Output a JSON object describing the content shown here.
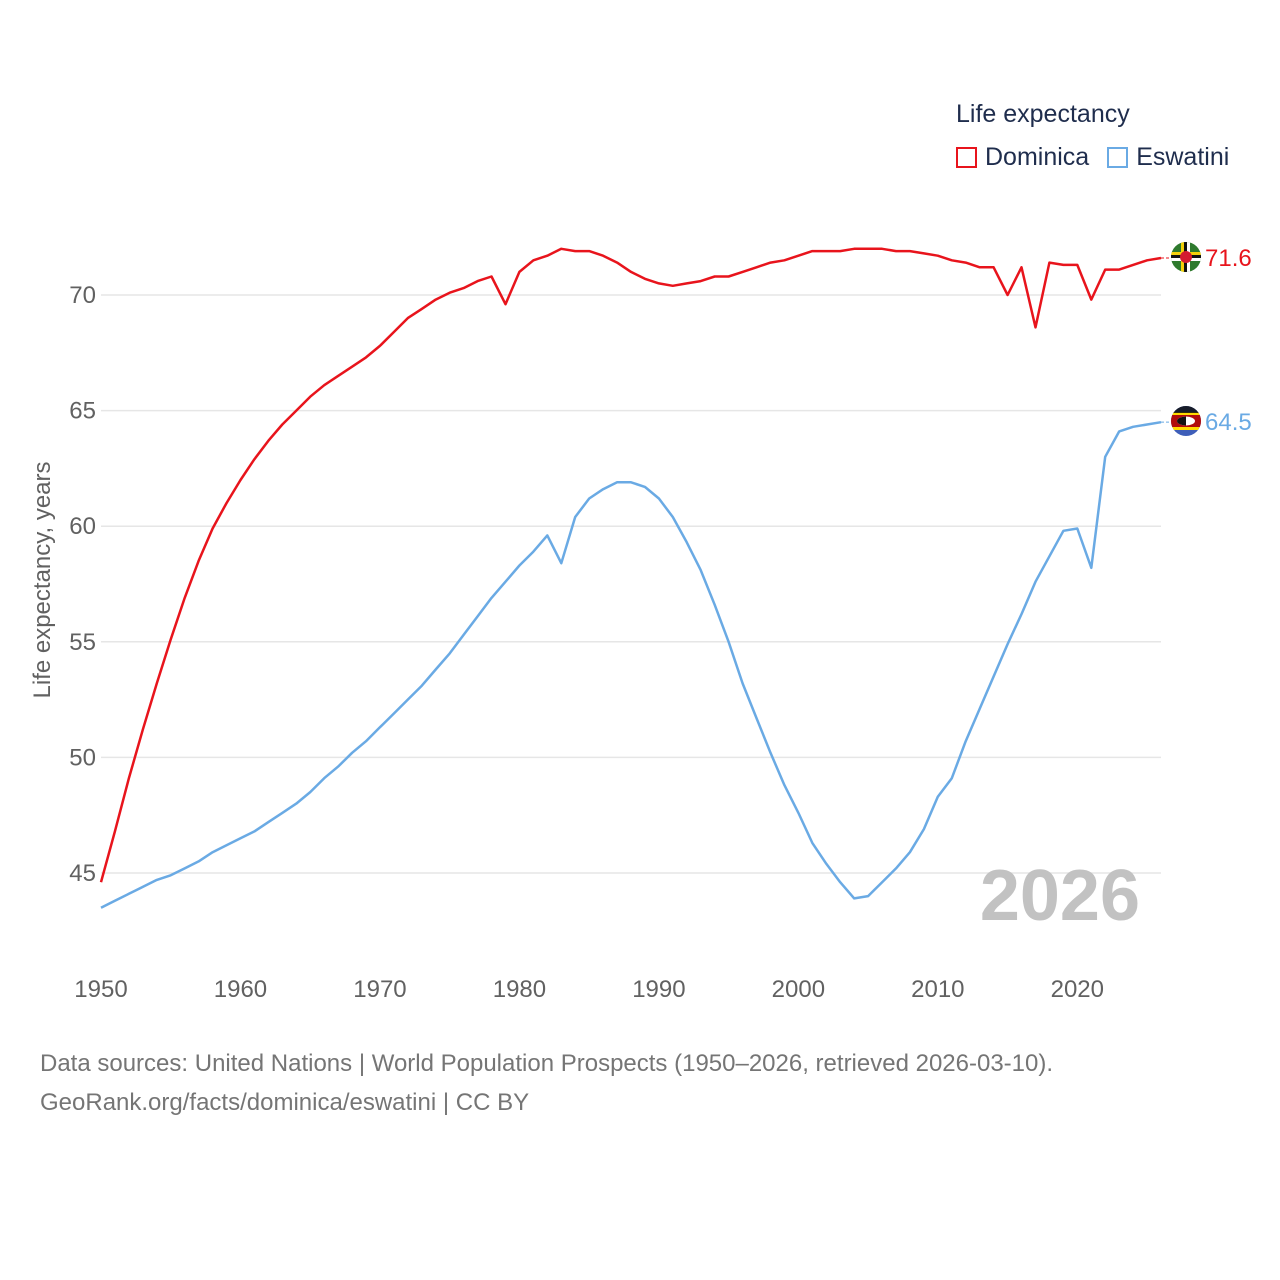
{
  "legend": {
    "title": "Life expectancy",
    "items": [
      {
        "label": "Dominica",
        "color": "#e8141c"
      },
      {
        "label": "Eswatini",
        "color": "#6aaae4"
      }
    ]
  },
  "footer": {
    "sources": "Data sources: United Nations | World Population Prospects (1950–2026, retrieved 2026-03-10).",
    "credit": "GeoRank.org/facts/dominica/eswatini | CC BY"
  },
  "chart_data": {
    "type": "line",
    "title": "Life expectancy",
    "xlabel": "",
    "ylabel": "Life expectancy, years",
    "xlim": [
      1950,
      2026
    ],
    "ylim": [
      42,
      74
    ],
    "x_ticks": [
      1950,
      1960,
      1970,
      1980,
      1990,
      2000,
      2010,
      2020
    ],
    "y_ticks": [
      45,
      50,
      55,
      60,
      65,
      70
    ],
    "grid": true,
    "year_watermark": "2026",
    "x": [
      1950,
      1951,
      1952,
      1953,
      1954,
      1955,
      1956,
      1957,
      1958,
      1959,
      1960,
      1961,
      1962,
      1963,
      1964,
      1965,
      1966,
      1967,
      1968,
      1969,
      1970,
      1971,
      1972,
      1973,
      1974,
      1975,
      1976,
      1977,
      1978,
      1979,
      1980,
      1981,
      1982,
      1983,
      1984,
      1985,
      1986,
      1987,
      1988,
      1989,
      1990,
      1991,
      1992,
      1993,
      1994,
      1995,
      1996,
      1997,
      1998,
      1999,
      2000,
      2001,
      2002,
      2003,
      2004,
      2005,
      2006,
      2007,
      2008,
      2009,
      2010,
      2011,
      2012,
      2013,
      2014,
      2015,
      2016,
      2017,
      2018,
      2019,
      2020,
      2021,
      2022,
      2023,
      2024,
      2025,
      2026
    ],
    "series": [
      {
        "name": "Dominica",
        "color": "#e8141c",
        "end_label": "71.6",
        "values": [
          44.6,
          46.8,
          49.1,
          51.2,
          53.2,
          55.1,
          56.9,
          58.5,
          59.9,
          61.0,
          62.0,
          62.9,
          63.7,
          64.4,
          65.0,
          65.6,
          66.1,
          66.5,
          66.9,
          67.3,
          67.8,
          68.4,
          69.0,
          69.4,
          69.8,
          70.1,
          70.3,
          70.6,
          70.8,
          69.6,
          71.0,
          71.5,
          71.7,
          72.0,
          71.9,
          71.9,
          71.7,
          71.4,
          71.0,
          70.7,
          70.5,
          70.4,
          70.5,
          70.6,
          70.8,
          70.8,
          71.0,
          71.2,
          71.4,
          71.5,
          71.7,
          71.9,
          71.9,
          71.9,
          72.0,
          72.0,
          72.0,
          71.9,
          71.9,
          71.8,
          71.7,
          71.5,
          71.4,
          71.2,
          71.2,
          70.0,
          71.2,
          68.6,
          71.4,
          71.3,
          71.3,
          69.8,
          71.1,
          71.1,
          71.3,
          71.5,
          71.6
        ]
      },
      {
        "name": "Eswatini",
        "color": "#6aaae4",
        "end_label": "64.5",
        "values": [
          43.5,
          43.8,
          44.1,
          44.4,
          44.7,
          44.9,
          45.2,
          45.5,
          45.9,
          46.2,
          46.5,
          46.8,
          47.2,
          47.6,
          48.0,
          48.5,
          49.1,
          49.6,
          50.2,
          50.7,
          51.3,
          51.9,
          52.5,
          53.1,
          53.8,
          54.5,
          55.3,
          56.1,
          56.9,
          57.6,
          58.3,
          58.9,
          59.6,
          58.4,
          60.4,
          61.2,
          61.6,
          61.9,
          61.9,
          61.7,
          61.2,
          60.4,
          59.3,
          58.1,
          56.6,
          55.0,
          53.2,
          51.7,
          50.2,
          48.8,
          47.6,
          46.3,
          45.4,
          44.6,
          43.9,
          44.0,
          44.6,
          45.2,
          45.9,
          46.9,
          48.3,
          49.1,
          50.7,
          52.1,
          53.5,
          54.9,
          56.2,
          57.6,
          58.7,
          59.8,
          59.9,
          58.2,
          63.0,
          64.1,
          64.3,
          64.4,
          64.5
        ]
      }
    ]
  }
}
